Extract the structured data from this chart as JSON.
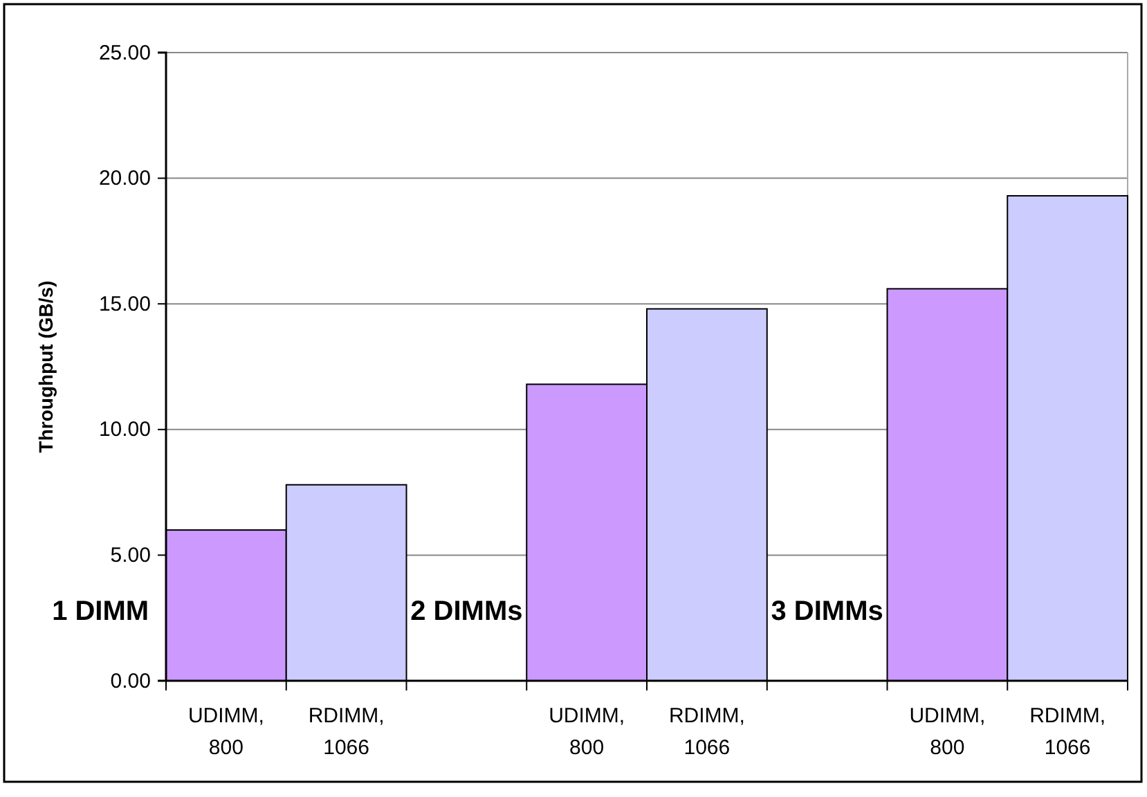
{
  "chart_data": {
    "type": "bar",
    "ylabel": "Throughput (GB/s)",
    "categories": [
      "UDIMM, 800",
      "RDIMM, 1066",
      null,
      "UDIMM, 800",
      "RDIMM, 1066",
      null,
      "UDIMM, 800",
      "RDIMM, 1066"
    ],
    "values": [
      6.0,
      7.8,
      null,
      11.8,
      14.8,
      null,
      15.6,
      19.3
    ],
    "colors": [
      "#cc99ff",
      "#ccccff",
      null,
      "#cc99ff",
      "#ccccff",
      null,
      "#cc99ff",
      "#ccccff"
    ],
    "ylim": [
      0,
      25
    ],
    "yticks": [
      {
        "value": 0,
        "label": "0.00"
      },
      {
        "value": 5,
        "label": "5.00"
      },
      {
        "value": 10,
        "label": "10.00"
      },
      {
        "value": 15,
        "label": "15.00"
      },
      {
        "value": 20,
        "label": "20.00"
      },
      {
        "value": 25,
        "label": "25.00"
      }
    ],
    "grid": "y",
    "annotations": [
      "1 DIMM",
      "2 DIMMs",
      "3 DIMMs"
    ]
  }
}
